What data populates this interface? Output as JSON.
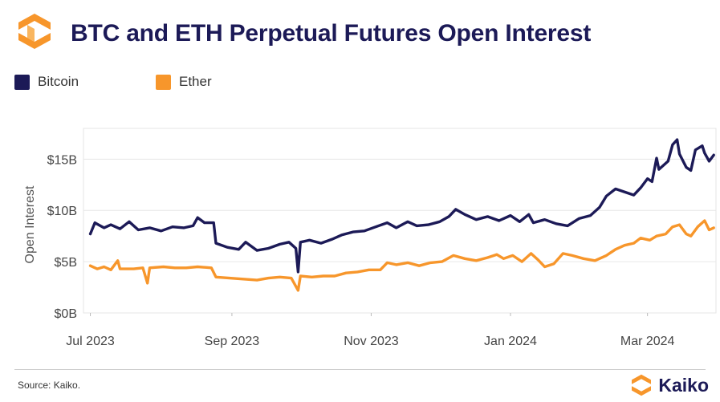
{
  "header": {
    "title": "BTC and ETH Perpetual Futures Open Interest"
  },
  "footer": {
    "source": "Source: Kaiko.",
    "brand": "Kaiko"
  },
  "colors": {
    "bitcoin": "#1c1a57",
    "ether": "#f7962b",
    "title": "#1c1a57",
    "grid": "#e6e6e6"
  },
  "icons": {
    "logo": "kaiko-logo-icon",
    "brand": "kaiko-logo-icon"
  },
  "chart_data": {
    "type": "line",
    "title": "BTC and ETH Perpetual Futures Open Interest",
    "ylabel": "Open Interest",
    "xlabel": "",
    "grid": true,
    "legend": "top-left",
    "ylim": [
      0,
      18
    ],
    "xlim": [
      "2023-06-28",
      "2024-03-31"
    ],
    "yticks": [
      0,
      5,
      10,
      15
    ],
    "ytick_labels": [
      "$0B",
      "$5B",
      "$10B",
      "$15B"
    ],
    "xticks": [
      "2023-07-01",
      "2023-09-01",
      "2023-11-01",
      "2024-01-01",
      "2024-03-01"
    ],
    "xtick_labels": [
      "Jul 2023",
      "Sep 2023",
      "Nov 2023",
      "Jan 2024",
      "Mar 2024"
    ],
    "series": [
      {
        "name": "Bitcoin",
        "color": "#1c1a57",
        "points": [
          [
            "2023-07-01",
            7.7
          ],
          [
            "2023-07-03",
            8.8
          ],
          [
            "2023-07-07",
            8.3
          ],
          [
            "2023-07-10",
            8.6
          ],
          [
            "2023-07-14",
            8.2
          ],
          [
            "2023-07-18",
            8.9
          ],
          [
            "2023-07-22",
            8.1
          ],
          [
            "2023-07-27",
            8.3
          ],
          [
            "2023-08-01",
            8.0
          ],
          [
            "2023-08-06",
            8.4
          ],
          [
            "2023-08-11",
            8.3
          ],
          [
            "2023-08-15",
            8.5
          ],
          [
            "2023-08-17",
            9.3
          ],
          [
            "2023-08-20",
            8.8
          ],
          [
            "2023-08-24",
            8.8
          ],
          [
            "2023-08-25",
            6.8
          ],
          [
            "2023-08-30",
            6.4
          ],
          [
            "2023-09-04",
            6.2
          ],
          [
            "2023-09-07",
            6.9
          ],
          [
            "2023-09-12",
            6.1
          ],
          [
            "2023-09-17",
            6.3
          ],
          [
            "2023-09-22",
            6.7
          ],
          [
            "2023-09-26",
            6.9
          ],
          [
            "2023-09-29",
            6.3
          ],
          [
            "2023-09-30",
            4.0
          ],
          [
            "2023-10-01",
            6.9
          ],
          [
            "2023-10-05",
            7.1
          ],
          [
            "2023-10-10",
            6.8
          ],
          [
            "2023-10-15",
            7.2
          ],
          [
            "2023-10-19",
            7.6
          ],
          [
            "2023-10-24",
            7.9
          ],
          [
            "2023-10-29",
            8.0
          ],
          [
            "2023-11-03",
            8.4
          ],
          [
            "2023-11-08",
            8.8
          ],
          [
            "2023-11-12",
            8.3
          ],
          [
            "2023-11-17",
            8.9
          ],
          [
            "2023-11-21",
            8.5
          ],
          [
            "2023-11-26",
            8.6
          ],
          [
            "2023-12-01",
            8.9
          ],
          [
            "2023-12-05",
            9.4
          ],
          [
            "2023-12-08",
            10.1
          ],
          [
            "2023-12-12",
            9.6
          ],
          [
            "2023-12-17",
            9.1
          ],
          [
            "2023-12-22",
            9.4
          ],
          [
            "2023-12-27",
            9.0
          ],
          [
            "2024-01-01",
            9.5
          ],
          [
            "2024-01-05",
            8.9
          ],
          [
            "2024-01-09",
            9.6
          ],
          [
            "2024-01-11",
            8.8
          ],
          [
            "2024-01-16",
            9.1
          ],
          [
            "2024-01-21",
            8.7
          ],
          [
            "2024-01-26",
            8.5
          ],
          [
            "2024-01-31",
            9.2
          ],
          [
            "2024-02-05",
            9.5
          ],
          [
            "2024-02-09",
            10.3
          ],
          [
            "2024-02-12",
            11.4
          ],
          [
            "2024-02-16",
            12.1
          ],
          [
            "2024-02-20",
            11.8
          ],
          [
            "2024-02-24",
            11.5
          ],
          [
            "2024-02-27",
            12.2
          ],
          [
            "2024-03-01",
            13.1
          ],
          [
            "2024-03-03",
            12.8
          ],
          [
            "2024-03-05",
            15.1
          ],
          [
            "2024-03-06",
            14.0
          ],
          [
            "2024-03-10",
            14.8
          ],
          [
            "2024-03-12",
            16.4
          ],
          [
            "2024-03-14",
            16.9
          ],
          [
            "2024-03-15",
            15.5
          ],
          [
            "2024-03-18",
            14.2
          ],
          [
            "2024-03-20",
            13.9
          ],
          [
            "2024-03-22",
            15.9
          ],
          [
            "2024-03-25",
            16.3
          ],
          [
            "2024-03-26",
            15.6
          ],
          [
            "2024-03-28",
            14.8
          ],
          [
            "2024-03-30",
            15.4
          ]
        ]
      },
      {
        "name": "Ether",
        "color": "#f7962b",
        "points": [
          [
            "2023-07-01",
            4.6
          ],
          [
            "2023-07-04",
            4.3
          ],
          [
            "2023-07-07",
            4.5
          ],
          [
            "2023-07-10",
            4.2
          ],
          [
            "2023-07-13",
            5.1
          ],
          [
            "2023-07-14",
            4.3
          ],
          [
            "2023-07-20",
            4.3
          ],
          [
            "2023-07-24",
            4.4
          ],
          [
            "2023-07-26",
            2.9
          ],
          [
            "2023-07-27",
            4.4
          ],
          [
            "2023-08-02",
            4.5
          ],
          [
            "2023-08-07",
            4.4
          ],
          [
            "2023-08-12",
            4.4
          ],
          [
            "2023-08-17",
            4.5
          ],
          [
            "2023-08-23",
            4.4
          ],
          [
            "2023-08-25",
            3.5
          ],
          [
            "2023-08-31",
            3.4
          ],
          [
            "2023-09-06",
            3.3
          ],
          [
            "2023-09-12",
            3.2
          ],
          [
            "2023-09-17",
            3.4
          ],
          [
            "2023-09-22",
            3.5
          ],
          [
            "2023-09-27",
            3.4
          ],
          [
            "2023-09-30",
            2.2
          ],
          [
            "2023-10-01",
            3.6
          ],
          [
            "2023-10-06",
            3.5
          ],
          [
            "2023-10-11",
            3.6
          ],
          [
            "2023-10-16",
            3.6
          ],
          [
            "2023-10-21",
            3.9
          ],
          [
            "2023-10-26",
            4.0
          ],
          [
            "2023-10-31",
            4.2
          ],
          [
            "2023-11-05",
            4.2
          ],
          [
            "2023-11-08",
            4.9
          ],
          [
            "2023-11-12",
            4.7
          ],
          [
            "2023-11-17",
            4.9
          ],
          [
            "2023-11-22",
            4.6
          ],
          [
            "2023-11-27",
            4.9
          ],
          [
            "2023-12-02",
            5.0
          ],
          [
            "2023-12-07",
            5.6
          ],
          [
            "2023-12-12",
            5.3
          ],
          [
            "2023-12-17",
            5.1
          ],
          [
            "2023-12-22",
            5.4
          ],
          [
            "2023-12-26",
            5.7
          ],
          [
            "2023-12-29",
            5.3
          ],
          [
            "2024-01-02",
            5.6
          ],
          [
            "2024-01-06",
            5.0
          ],
          [
            "2024-01-10",
            5.8
          ],
          [
            "2024-01-13",
            5.2
          ],
          [
            "2024-01-16",
            4.5
          ],
          [
            "2024-01-20",
            4.8
          ],
          [
            "2024-01-24",
            5.8
          ],
          [
            "2024-01-28",
            5.6
          ],
          [
            "2024-02-02",
            5.3
          ],
          [
            "2024-02-07",
            5.1
          ],
          [
            "2024-02-12",
            5.6
          ],
          [
            "2024-02-16",
            6.2
          ],
          [
            "2024-02-20",
            6.6
          ],
          [
            "2024-02-24",
            6.8
          ],
          [
            "2024-02-27",
            7.3
          ],
          [
            "2024-03-02",
            7.1
          ],
          [
            "2024-03-05",
            7.5
          ],
          [
            "2024-03-09",
            7.7
          ],
          [
            "2024-03-12",
            8.4
          ],
          [
            "2024-03-15",
            8.6
          ],
          [
            "2024-03-18",
            7.7
          ],
          [
            "2024-03-20",
            7.5
          ],
          [
            "2024-03-23",
            8.4
          ],
          [
            "2024-03-26",
            9.0
          ],
          [
            "2024-03-28",
            8.1
          ],
          [
            "2024-03-30",
            8.3
          ]
        ]
      }
    ]
  }
}
